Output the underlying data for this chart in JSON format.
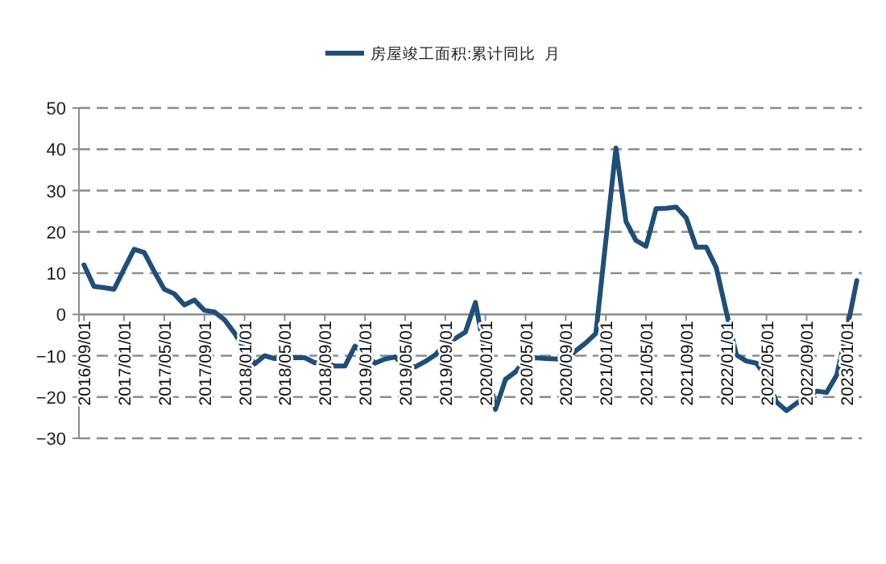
{
  "chart_data": {
    "type": "line",
    "categories": [
      "2016/09/01",
      null,
      null,
      null,
      "2017/01/01",
      null,
      null,
      null,
      "2017/05/01",
      null,
      null,
      null,
      "2017/09/01",
      null,
      null,
      null,
      "2018/01/01",
      null,
      null,
      null,
      "2018/05/01",
      null,
      null,
      null,
      "2018/09/01",
      null,
      null,
      null,
      "2019/01/01",
      null,
      null,
      null,
      "2019/05/01",
      null,
      null,
      null,
      "2019/09/01",
      null,
      null,
      null,
      "2020/01/01",
      null,
      null,
      null,
      "2020/05/01",
      null,
      null,
      null,
      "2020/09/01",
      null,
      null,
      null,
      "2021/01/01",
      null,
      null,
      null,
      "2021/05/01",
      null,
      null,
      null,
      "2021/09/01",
      null,
      null,
      null,
      "2022/01/01",
      null,
      null,
      null,
      "2022/05/01",
      null,
      null,
      null,
      "2022/09/01",
      null,
      null,
      null,
      "2023/01/01",
      null
    ],
    "series": [
      {
        "name": "房屋竣工面积:累计同比  月",
        "color": "#1f4e79",
        "values": [
          12,
          6.8,
          6.5,
          6.1,
          11,
          15.8,
          15,
          10.4,
          6.1,
          5,
          2.3,
          3.5,
          1,
          0.6,
          -1.3,
          -4.5,
          -8.4,
          -12,
          -10,
          -10.7,
          -10.4,
          -10.5,
          -10.5,
          -11.7,
          -11.6,
          -12.5,
          -12.5,
          -7.7,
          -9.5,
          -11.8,
          -10.8,
          -10.3,
          -12.6,
          -12.7,
          -11.4,
          -9.8,
          -7.1,
          -5.8,
          -4.3,
          2.9,
          -10,
          -23,
          -15.7,
          -13.9,
          -10.8,
          -10.5,
          -10.7,
          -10.8,
          -11,
          -8.8,
          -6.9,
          -4.6,
          18,
          40.3,
          22.5,
          17.9,
          16.5,
          25.6,
          25.7,
          26,
          23.4,
          16.3,
          16.3,
          11.3,
          0.6,
          -9.8,
          -11.3,
          -11.8,
          -15.3,
          -21.2,
          -23.3,
          -21.5,
          -19.8,
          -18.6,
          -18.9,
          -14.7,
          -3.9,
          8.2
        ]
      }
    ],
    "ylim": [
      -30,
      50
    ],
    "yticks": [
      -30,
      -20,
      -10,
      0,
      10,
      20,
      30,
      40,
      50
    ],
    "grid": "y",
    "legend": "top"
  }
}
